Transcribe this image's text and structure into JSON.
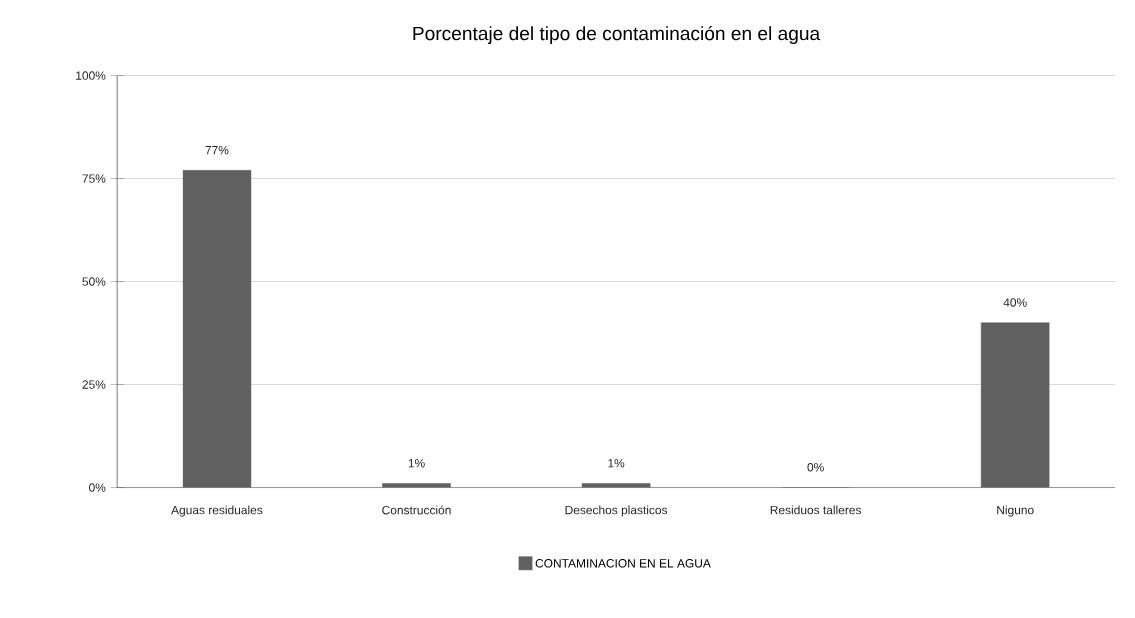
{
  "chart_data": {
    "type": "bar",
    "title": "Porcentaje del tipo de contaminación en el agua",
    "categories": [
      "Aguas residuales",
      "Construcción",
      "Desechos plasticos",
      "Residuos talleres",
      "Niguno"
    ],
    "series": [
      {
        "name": "CONTAMINACION EN EL AGUA",
        "color": "#606060",
        "values": [
          77,
          1,
          1,
          0,
          40
        ],
        "value_labels": [
          "77%",
          "1%",
          "1%",
          "0%",
          "40%"
        ]
      }
    ],
    "ylim": [
      0,
      100
    ],
    "yticks": [
      {
        "value": 0,
        "label": "0%"
      },
      {
        "value": 25,
        "label": "25%"
      },
      {
        "value": 50,
        "label": "50%"
      },
      {
        "value": 75,
        "label": "75%"
      },
      {
        "value": 100,
        "label": "100%"
      }
    ],
    "grid": "y",
    "legend": "bottom"
  }
}
